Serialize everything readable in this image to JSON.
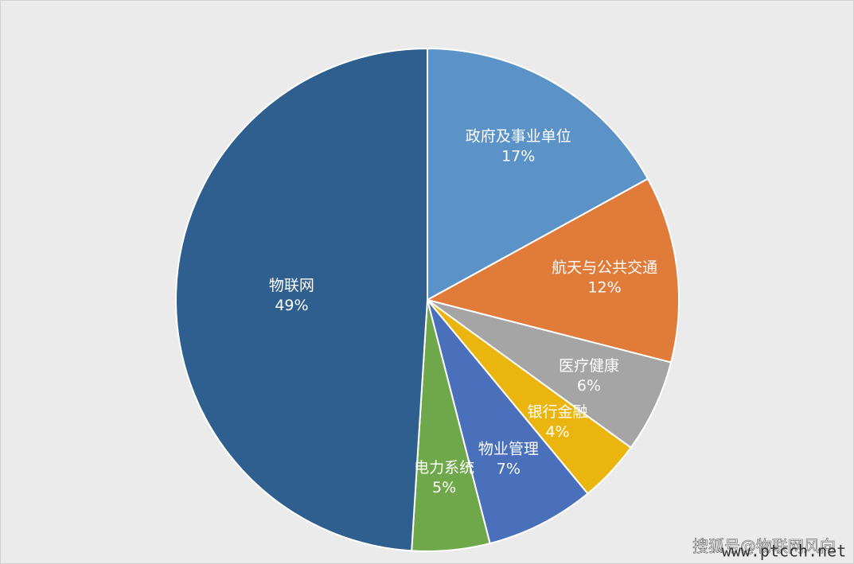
{
  "chart_data": {
    "type": "pie",
    "categories": [
      "政府及事业单位",
      "航天与公共交通",
      "医疗健康",
      "银行金融",
      "物业管理",
      "电力系统",
      "物联网"
    ],
    "values": [
      17,
      12,
      6,
      4,
      7,
      5,
      49
    ],
    "value_labels": [
      "17%",
      "12%",
      "6%",
      "4%",
      "7%",
      "5%",
      "49%"
    ],
    "colors": [
      "#5b93c8",
      "#e07b39",
      "#a5a5a5",
      "#ebb50f",
      "#4a70bb",
      "#6fa84a",
      "#2e5f8e"
    ]
  },
  "watermark": {
    "source": "搜狐号@物联网风向",
    "site": "www.ptcch.net"
  }
}
